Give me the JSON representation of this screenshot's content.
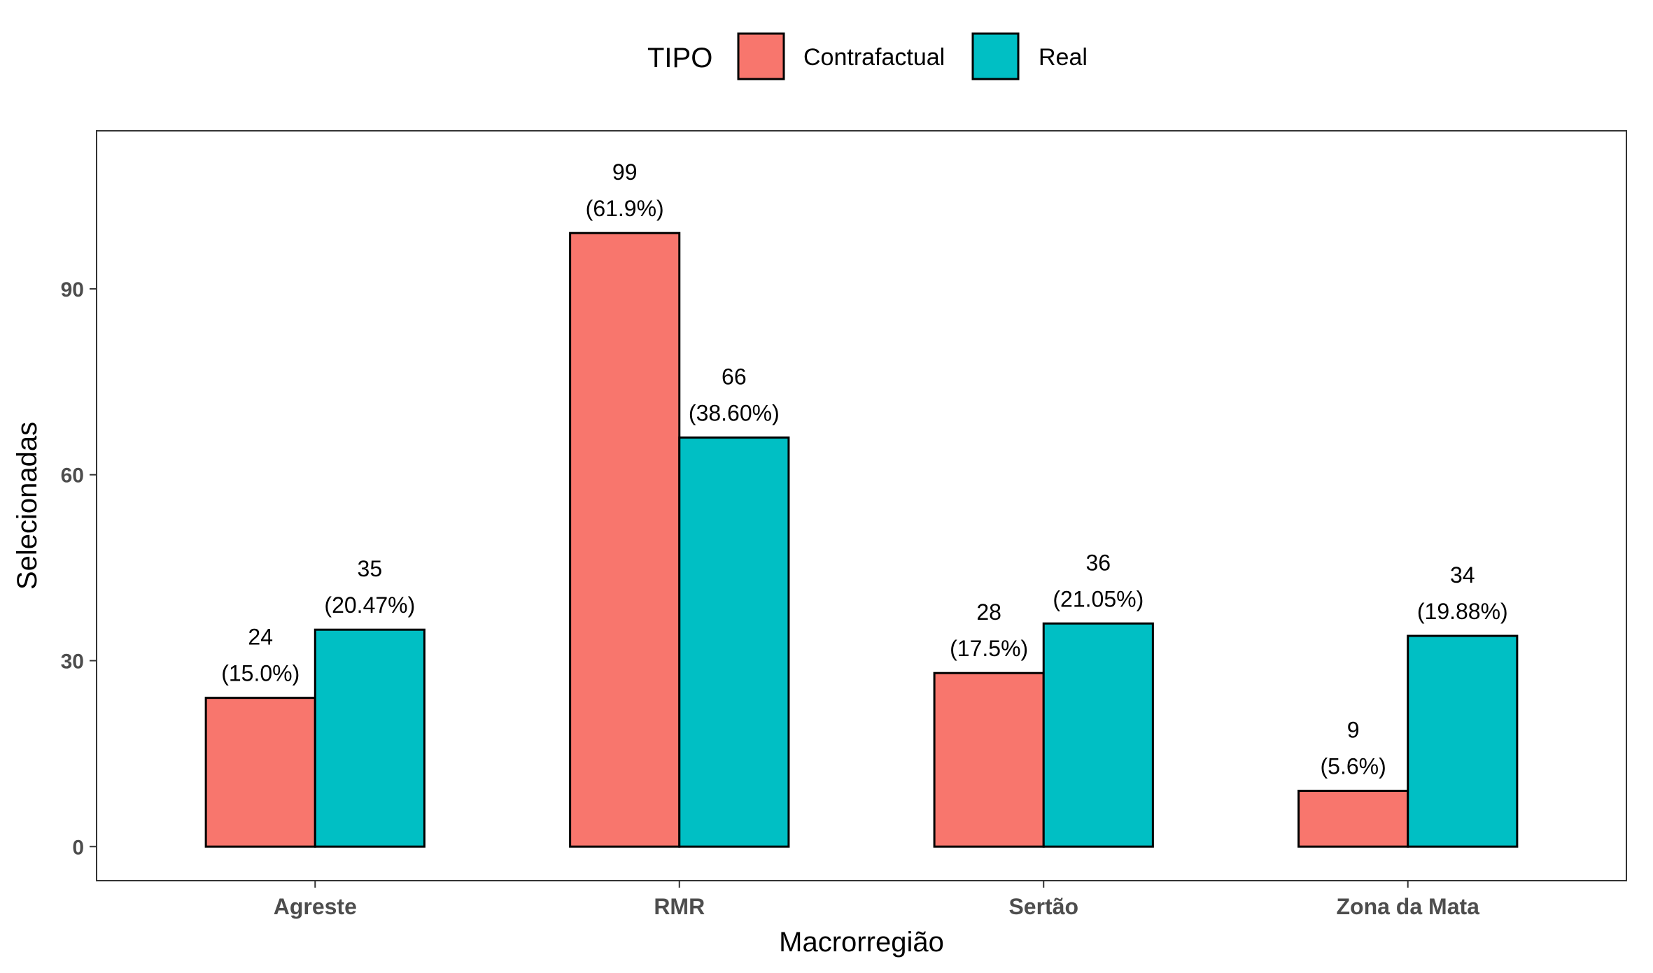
{
  "chart_data": {
    "type": "bar",
    "categories": [
      "Agreste",
      "RMR",
      "Sertão",
      "Zona da Mata"
    ],
    "series": [
      {
        "name": "Contrafactual",
        "color": "#F8766D",
        "values": [
          24,
          99,
          28,
          9
        ],
        "labels": [
          "(15.0%)",
          "(61.9%)",
          "(17.5%)",
          "(5.6%)"
        ]
      },
      {
        "name": "Real",
        "color": "#00BFC4",
        "values": [
          35,
          66,
          36,
          34
        ],
        "labels": [
          "(20.47%)",
          "(38.60%)",
          "(21.05%)",
          "(19.88%)"
        ]
      }
    ],
    "xlabel": "Macrorregião",
    "ylabel": "Selecionadas",
    "ylim": [
      -5.5,
      115.5
    ],
    "yticks": [
      0,
      30,
      60,
      90
    ],
    "legend": {
      "title": "TIPO",
      "position": "top"
    },
    "grid": false
  }
}
